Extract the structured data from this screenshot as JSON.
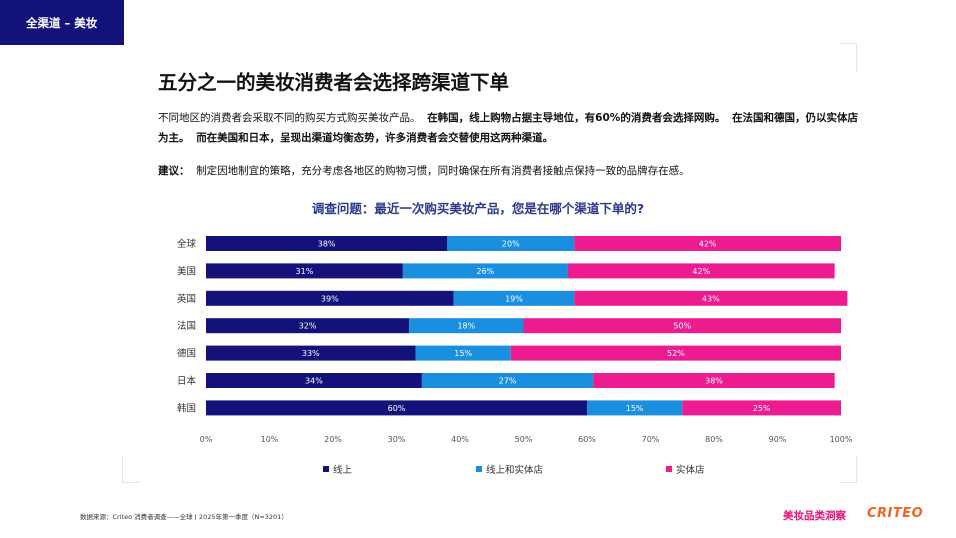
{
  "header": {
    "tag": "全渠道 – 美妆"
  },
  "title": "五分之一的美妆消费者会选择跨渠道下单",
  "description": {
    "p1": "不同地区的消费者会采取不同的购买方式购买美妆产品。",
    "p2": "在韩国，线上购物占据主导地位，有60%的消费者会选择网购。",
    "p3": "在法国和德国，仍以实体店为主。",
    "p4": "而在美国和日本，呈现出渠道均衡态势，许多消费者会交替使用这两种渠道。"
  },
  "advice": {
    "label": "建议：",
    "text": "制定因地制宜的策略，充分考虑各地区的购物习惯，同时确保在所有消费者接触点保持一致的品牌存在感。"
  },
  "chart_question": "调查问题：最近一次购买美妆产品，您是在哪个渠道下单的?",
  "chart_data": {
    "type": "bar",
    "orientation": "horizontal",
    "stacked": true,
    "categories": [
      "全球",
      "美国",
      "英国",
      "法国",
      "德国",
      "日本",
      "韩国"
    ],
    "series": [
      {
        "name": "线上",
        "color": "#13127a",
        "values": [
          38,
          31,
          39,
          32,
          33,
          34,
          60
        ]
      },
      {
        "name": "线上和实体店",
        "color": "#1a8fe0",
        "values": [
          20,
          26,
          19,
          18,
          15,
          27,
          15
        ]
      },
      {
        "name": "实体店",
        "color": "#ec1b8f",
        "values": [
          42,
          42,
          43,
          50,
          52,
          38,
          25
        ]
      }
    ],
    "xlim": [
      0,
      100
    ],
    "xticks": [
      "0%",
      "10%",
      "20%",
      "30%",
      "40%",
      "50%",
      "60%",
      "70%",
      "80%",
      "90%",
      "100%"
    ],
    "value_suffix": "%",
    "grid": false,
    "legend": "bottom"
  },
  "footer": {
    "source": "数据来源：Criteo 消费者调查——全球 | 2025年第一季度（N=3201）",
    "brand_cn": "美妆品类洞察",
    "brand_logo": "CRITEO"
  }
}
